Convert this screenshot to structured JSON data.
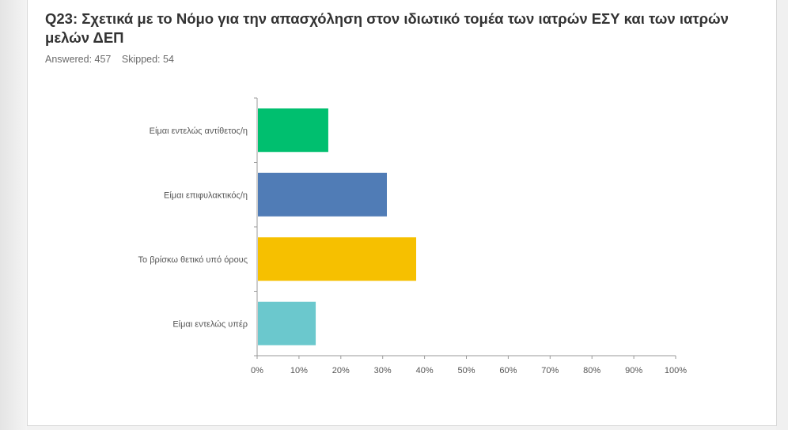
{
  "question": {
    "title": "Q23: Σχετικά με το Νόμο για την απασχόληση στον ιδιωτικό τομέα των ιατρών ΕΣΥ και των ιατρών μελών ΔΕΠ",
    "answered_label": "Answered: 457",
    "skipped_label": "Skipped: 54"
  },
  "chart_data": {
    "type": "bar",
    "orientation": "horizontal",
    "categories": [
      "Είμαι εντελώς αντίθετος/η",
      "Είμαι επιφυλακτικός/η",
      "Το βρίσκω θετικό υπό όρους",
      "Είμαι εντελώς υπέρ"
    ],
    "values": [
      17,
      31,
      38,
      14
    ],
    "colors": [
      "#00bf6f",
      "#507cb6",
      "#f6c000",
      "#6bc8cd"
    ],
    "xlim": [
      0,
      100
    ],
    "xticks": [
      "0%",
      "10%",
      "20%",
      "30%",
      "40%",
      "50%",
      "60%",
      "70%",
      "80%",
      "90%",
      "100%"
    ],
    "grid": false
  }
}
